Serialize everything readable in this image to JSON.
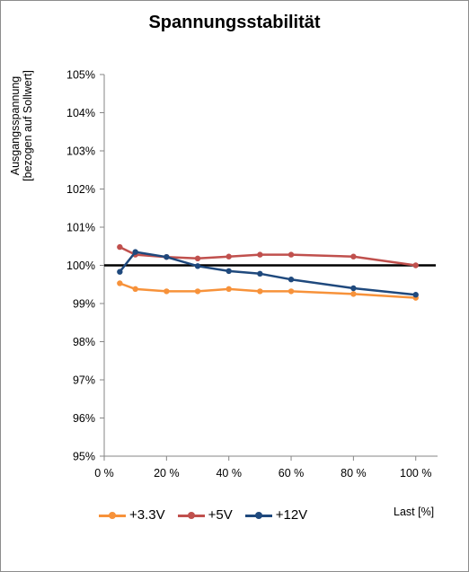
{
  "chart_data": {
    "type": "line",
    "title": "Spannungsstabilität",
    "ylabel_lines": [
      "Ausgangsspannung",
      "[bezogen auf Sollwert]"
    ],
    "xlabel": "Last [%]",
    "xlim": [
      0,
      107
    ],
    "ylim": [
      95,
      105
    ],
    "x_ticks": [
      0,
      20,
      40,
      60,
      80,
      100
    ],
    "x_tick_labels": [
      "0 %",
      "20 %",
      "40 %",
      "60 %",
      "80 %",
      "100 %"
    ],
    "y_ticks": [
      95,
      96,
      97,
      98,
      99,
      100,
      101,
      102,
      103,
      104,
      105
    ],
    "y_tick_labels": [
      "95%",
      "96%",
      "97%",
      "98%",
      "99%",
      "100%",
      "101%",
      "102%",
      "103%",
      "104%",
      "105%"
    ],
    "grid": false,
    "legend_position": "bottom",
    "reference_line": {
      "value": 100,
      "color": "#000000"
    },
    "series": [
      {
        "name": "+3.3V",
        "color": "#f7923a",
        "x": [
          5,
          10,
          20,
          30,
          40,
          50,
          60,
          80,
          100
        ],
        "y": [
          99.53,
          99.38,
          99.32,
          99.32,
          99.38,
          99.32,
          99.32,
          99.25,
          99.15
        ]
      },
      {
        "name": "+5V",
        "color": "#c0504d",
        "x": [
          5,
          10,
          20,
          30,
          40,
          50,
          60,
          80,
          100
        ],
        "y": [
          100.48,
          100.28,
          100.22,
          100.18,
          100.23,
          100.28,
          100.28,
          100.23,
          100.0
        ]
      },
      {
        "name": "+12V",
        "color": "#1f497d",
        "x": [
          5,
          10,
          20,
          30,
          40,
          50,
          60,
          80,
          100
        ],
        "y": [
          99.83,
          100.35,
          100.22,
          99.98,
          99.85,
          99.78,
          99.63,
          99.4,
          99.23
        ]
      }
    ]
  }
}
